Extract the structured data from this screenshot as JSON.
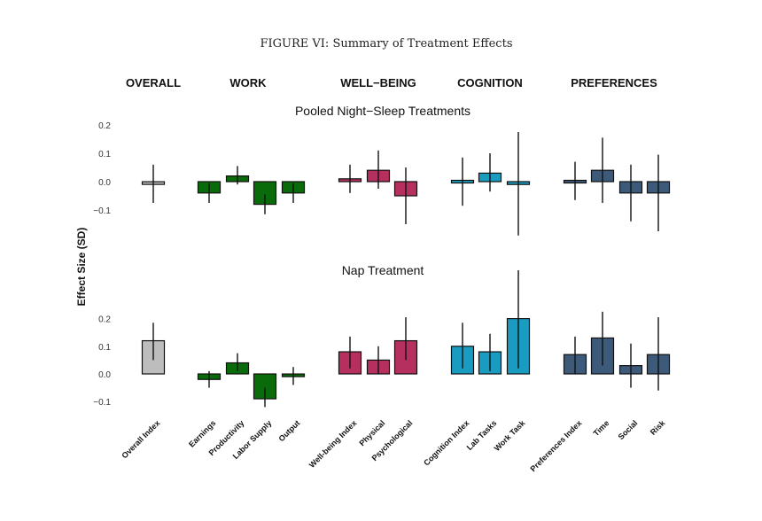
{
  "figure_title": "FIGURE VI: Summary of Treatment Effects",
  "y_axis_label": "Effect Size (SD)",
  "groups": [
    {
      "label": "OVERALL",
      "color": "#bdbdbd"
    },
    {
      "label": "WORK",
      "color": "#0a6b0a"
    },
    {
      "label": "WELL−BEING",
      "color": "#b5305f"
    },
    {
      "label": "COGNITION",
      "color": "#1a9bc0"
    },
    {
      "label": "PREFERENCES",
      "color": "#3d5a7a"
    }
  ],
  "chart_data": [
    {
      "type": "bar",
      "title": "Pooled Night−Sleep Treatments",
      "ylabel": "Effect Size (SD)",
      "ylim": [
        -0.2,
        0.22
      ],
      "yticks": [
        "0.2",
        "0.1",
        "0.0",
        "−0.1"
      ],
      "categories": [
        "Overall Index",
        "Earnings",
        "Productivity",
        "Labor Supply",
        "Output",
        "Well-being Index",
        "Physical",
        "Psychological",
        "Cognition Index",
        "Lab Tasks",
        "Work Task",
        "Preferences Index",
        "Time",
        "Social",
        "Risk"
      ],
      "values": [
        -0.005,
        -0.04,
        0.02,
        -0.08,
        -0.04,
        0.01,
        0.04,
        -0.05,
        0.0,
        0.03,
        -0.01,
        0.0,
        0.04,
        -0.04,
        -0.04
      ],
      "ci_low": [
        -0.075,
        -0.075,
        -0.01,
        -0.115,
        -0.075,
        -0.04,
        -0.025,
        -0.15,
        -0.085,
        -0.035,
        -0.19,
        -0.065,
        -0.075,
        -0.14,
        -0.175
      ],
      "ci_high": [
        0.06,
        -0.005,
        0.055,
        -0.045,
        -0.005,
        0.06,
        0.11,
        0.05,
        0.085,
        0.1,
        0.175,
        0.07,
        0.155,
        0.06,
        0.095
      ]
    },
    {
      "type": "bar",
      "title": "Nap Treatment",
      "ylabel": "Effect Size (SD)",
      "ylim": [
        -0.2,
        0.22
      ],
      "yticks": [
        "0.2",
        "0.1",
        "0.0",
        "−0.1"
      ],
      "categories": [
        "Overall Index",
        "Earnings",
        "Productivity",
        "Labor Supply",
        "Output",
        "Well-being Index",
        "Physical",
        "Psychological",
        "Cognition Index",
        "Lab Tasks",
        "Work Task",
        "Preferences Index",
        "Time",
        "Social",
        "Risk"
      ],
      "values": [
        0.12,
        -0.02,
        0.04,
        -0.09,
        -0.005,
        0.08,
        0.05,
        0.12,
        0.1,
        0.08,
        0.2,
        0.07,
        0.13,
        0.03,
        0.07
      ],
      "ci_low": [
        0.05,
        -0.05,
        0.01,
        -0.12,
        -0.04,
        0.02,
        0.0,
        0.05,
        0.02,
        0.01,
        0.02,
        0.0,
        0.03,
        -0.05,
        -0.06
      ],
      "ci_high": [
        0.185,
        0.01,
        0.075,
        -0.05,
        0.025,
        0.135,
        0.1,
        0.205,
        0.185,
        0.145,
        0.375,
        0.135,
        0.225,
        0.11,
        0.205
      ]
    }
  ]
}
